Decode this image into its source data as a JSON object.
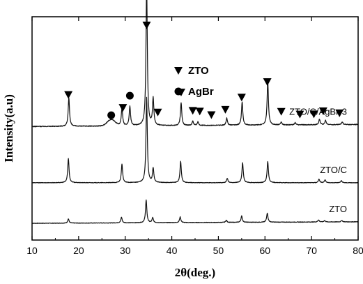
{
  "chart_data": {
    "type": "line",
    "title": "",
    "xlabel": "2θ(deg.)",
    "ylabel": "Intensity(a.u)",
    "xlim": [
      10,
      80
    ],
    "xticks": [
      10,
      20,
      30,
      40,
      50,
      60,
      70,
      80
    ],
    "yticks": false,
    "grid": false,
    "legend": {
      "placement": "top-center",
      "entries": [
        {
          "marker": "triangle",
          "label": "ZTO"
        },
        {
          "marker": "circle",
          "label": "AgBr"
        }
      ]
    },
    "series": [
      {
        "name": "ZTO",
        "baseline": 0,
        "slope": 0.03,
        "noise": 0.35,
        "peaks": [
          {
            "x": 17.8,
            "h": 6
          },
          {
            "x": 29.2,
            "h": 8
          },
          {
            "x": 34.5,
            "h": 32
          },
          {
            "x": 35.9,
            "h": 7
          },
          {
            "x": 41.8,
            "h": 8
          },
          {
            "x": 51.7,
            "h": 3
          },
          {
            "x": 55.0,
            "h": 9
          },
          {
            "x": 60.5,
            "h": 13
          },
          {
            "x": 71.5,
            "h": 3
          },
          {
            "x": 72.8,
            "h": 2
          },
          {
            "x": 76.5,
            "h": 2
          }
        ]
      },
      {
        "name": "ZTO/C",
        "baseline": 57,
        "slope": 0,
        "noise": 0.35,
        "peaks": [
          {
            "x": 17.8,
            "h": 34
          },
          {
            "x": 29.3,
            "h": 26
          },
          {
            "x": 34.6,
            "h": 120
          },
          {
            "x": 36.0,
            "h": 20
          },
          {
            "x": 41.9,
            "h": 30
          },
          {
            "x": 51.9,
            "h": 6
          },
          {
            "x": 55.2,
            "h": 28
          },
          {
            "x": 60.6,
            "h": 30
          },
          {
            "x": 71.6,
            "h": 5
          },
          {
            "x": 72.9,
            "h": 4
          },
          {
            "x": 76.4,
            "h": 3
          }
        ]
      },
      {
        "name": "ZTO/C/AgBr-3",
        "baseline": 136,
        "slope": 0.04,
        "noise": 0.55,
        "hump": {
          "x": 27.0,
          "h": 9,
          "w": 1.2
        },
        "peaks": [
          {
            "x": 17.9,
            "h": 40
          },
          {
            "x": 29.3,
            "h": 25
          },
          {
            "x": 31.0,
            "h": 27
          },
          {
            "x": 34.6,
            "h": 200
          },
          {
            "x": 36.0,
            "h": 38
          },
          {
            "x": 42.0,
            "h": 32
          },
          {
            "x": 44.5,
            "h": 6
          },
          {
            "x": 45.6,
            "h": 5
          },
          {
            "x": 51.8,
            "h": 10
          },
          {
            "x": 55.1,
            "h": 33
          },
          {
            "x": 60.6,
            "h": 62
          },
          {
            "x": 63.5,
            "h": 4
          },
          {
            "x": 66.5,
            "h": 3
          },
          {
            "x": 71.7,
            "h": 8
          },
          {
            "x": 73.0,
            "h": 6
          },
          {
            "x": 76.6,
            "h": 4
          }
        ]
      }
    ],
    "markers": [
      {
        "type": "triangle",
        "x": 17.8
      },
      {
        "type": "circle",
        "x": 27.0
      },
      {
        "type": "triangle",
        "x": 29.5
      },
      {
        "type": "circle",
        "x": 31.0
      },
      {
        "type": "triangle",
        "x": 34.6
      },
      {
        "type": "triangle",
        "x": 37.0
      },
      {
        "type": "triangle",
        "x": 42.0
      },
      {
        "type": "triangle",
        "x": 44.5
      },
      {
        "type": "triangle",
        "x": 46.0
      },
      {
        "type": "triangle",
        "x": 48.5
      },
      {
        "type": "triangle",
        "x": 51.5
      },
      {
        "type": "triangle",
        "x": 55.0
      },
      {
        "type": "triangle",
        "x": 60.5
      },
      {
        "type": "triangle",
        "x": 63.5
      },
      {
        "type": "triangle",
        "x": 67.5
      },
      {
        "type": "triangle",
        "x": 70.5
      },
      {
        "type": "triangle",
        "x": 72.5
      },
      {
        "type": "triangle",
        "x": 76.0
      }
    ]
  }
}
